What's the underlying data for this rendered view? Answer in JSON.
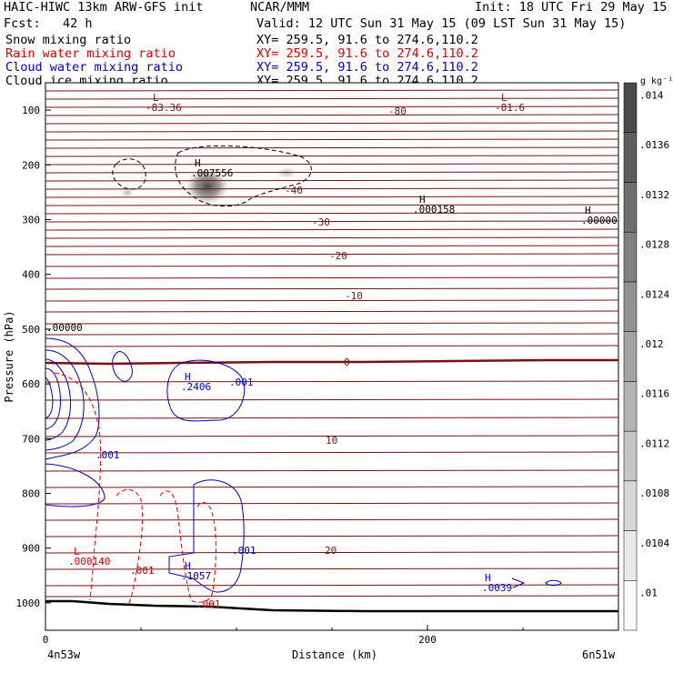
{
  "header": {
    "model": "HAIC-HIWC 13km ARW-GFS init",
    "org": "NCAR/MMM",
    "init": "Init: 18 UTC Fri 29 May 15",
    "fcst": "Fcst:   42 h",
    "valid": "Valid: 12 UTC Sun 31 May 15 (09 LST Sun 31 May 15)"
  },
  "fields": [
    {
      "name": "Snow mixing ratio",
      "xy": "XY= 259.5, 91.6 to 274.6,110.2",
      "color": "#000000"
    },
    {
      "name": "Rain water mixing ratio",
      "xy": "XY= 259.5, 91.6 to 274.6,110.2",
      "color": "#e00000"
    },
    {
      "name": "Cloud water mixing ratio",
      "xy": "XY= 259.5, 91.6 to 274.6,110.2",
      "color": "#0000cc"
    },
    {
      "name": "Cloud ice mixing ratio",
      "xy": "XY= 259.5, 91.6 to 274.6,110.2",
      "color": "#000000"
    }
  ],
  "colorbar": {
    "unit": "g kg⁻¹",
    "labels": [
      ".01",
      ".0104",
      ".0108",
      ".0112",
      ".0116",
      ".012",
      ".0124",
      ".0128",
      ".0132",
      ".0136",
      ".014"
    ]
  },
  "chart_data": {
    "type": "contour",
    "xlabel": "Distance (km)",
    "ylabel": "Pressure (hPa)",
    "xlim": [
      0,
      300
    ],
    "ylim": [
      1050,
      50
    ],
    "xticks": [
      "0",
      "200"
    ],
    "yticks": [
      "100",
      "200",
      "300",
      "400",
      "500",
      "600",
      "700",
      "800",
      "900",
      "1000"
    ],
    "x_endpoints": {
      "left": "4n53w",
      "right": "6n51w"
    },
    "temperature_labels": [
      "-80",
      "-40",
      "-30",
      "-20",
      "-10",
      "0",
      "10",
      "20"
    ],
    "maxmin_labels": [
      {
        "kind": "L",
        "value": "-83.36",
        "color": "#8b1a1a"
      },
      {
        "kind": "L",
        "value": "-81.6",
        "color": "#8b1a1a"
      },
      {
        "kind": "H",
        "value": ".007556",
        "color": "#000000"
      },
      {
        "kind": "H",
        "value": ".000158",
        "color": "#000000"
      },
      {
        "kind": "H",
        "value": ".00000",
        "color": "#000000"
      },
      {
        "kind": "",
        "value": ".00000",
        "color": "#000000"
      },
      {
        "kind": "H",
        "value": ".2406",
        "color": "#0000cc"
      },
      {
        "kind": "H",
        "value": ".1057",
        "color": "#0000cc"
      },
      {
        "kind": "H",
        "value": ".0039",
        "color": "#0000cc"
      },
      {
        "kind": "L",
        "value": ".000140",
        "color": "#e00000"
      }
    ],
    "contour_labels": [
      {
        "value": ".001",
        "color": "#0000cc"
      },
      {
        "value": ".001",
        "color": "#0000cc"
      },
      {
        "value": ".001",
        "color": "#0000cc"
      },
      {
        "value": ".001",
        "color": "#e00000"
      },
      {
        "value": ".001",
        "color": "#e00000"
      }
    ]
  }
}
